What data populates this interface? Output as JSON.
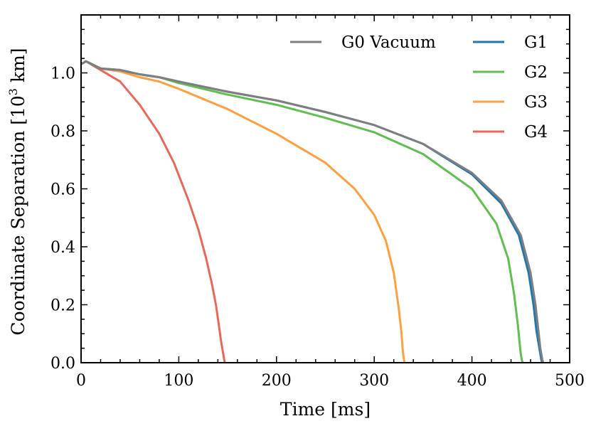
{
  "chart_data": {
    "type": "line",
    "title": "",
    "xlabel": "Time [ms]",
    "ylabel": {
      "prefix": "Coordinate Separation [10",
      "exponent": "3",
      "suffix": " km]"
    },
    "xlim": [
      0,
      500
    ],
    "ylim": [
      0,
      1.2
    ],
    "xticks": [
      0,
      100,
      200,
      300,
      400,
      500
    ],
    "xtick_labels": [
      "0",
      "100",
      "200",
      "300",
      "400",
      "500"
    ],
    "yticks": [
      0.0,
      0.2,
      0.4,
      0.6,
      0.8,
      1.0
    ],
    "ytick_labels": [
      "0.0",
      "0.2",
      "0.4",
      "0.6",
      "0.8",
      "1.0"
    ],
    "x_minor_step": 20,
    "y_minor_step": 0.05,
    "grid": false,
    "legend": "top-right, two columns",
    "series": [
      {
        "name": "G0 Vacuum",
        "color": "#7f7f7f",
        "x": [
          0,
          5,
          20,
          40,
          60,
          80,
          100,
          150,
          200,
          250,
          300,
          350,
          400,
          430,
          450,
          460,
          465,
          468,
          470,
          472,
          473
        ],
        "y": [
          1.03,
          1.04,
          1.015,
          1.01,
          0.995,
          0.985,
          0.97,
          0.935,
          0.905,
          0.865,
          0.82,
          0.755,
          0.655,
          0.56,
          0.44,
          0.31,
          0.2,
          0.11,
          0.05,
          0.01,
          0.0
        ]
      },
      {
        "name": "G1",
        "color": "#1f77b4",
        "x": [
          0,
          5,
          20,
          40,
          60,
          80,
          100,
          150,
          200,
          250,
          300,
          350,
          400,
          430,
          448,
          458,
          463,
          466,
          469,
          471,
          472
        ],
        "y": [
          1.03,
          1.04,
          1.015,
          1.01,
          0.995,
          0.985,
          0.97,
          0.935,
          0.905,
          0.865,
          0.82,
          0.755,
          0.65,
          0.55,
          0.44,
          0.31,
          0.2,
          0.11,
          0.05,
          0.01,
          0.0
        ]
      },
      {
        "name": "G2",
        "color": "#5fbf4f",
        "x": [
          0,
          5,
          20,
          40,
          60,
          80,
          100,
          150,
          200,
          250,
          300,
          350,
          400,
          425,
          437,
          443,
          447,
          449,
          450,
          451,
          452
        ],
        "y": [
          1.03,
          1.04,
          1.015,
          1.01,
          0.995,
          0.985,
          0.965,
          0.925,
          0.89,
          0.845,
          0.795,
          0.72,
          0.6,
          0.48,
          0.36,
          0.24,
          0.13,
          0.06,
          0.03,
          0.01,
          0.0
        ]
      },
      {
        "name": "G3",
        "color": "#ff9f3f",
        "x": [
          0,
          5,
          20,
          40,
          60,
          80,
          100,
          150,
          200,
          250,
          280,
          300,
          312,
          320,
          325,
          328,
          329,
          330,
          331
        ],
        "y": [
          1.03,
          1.04,
          1.015,
          1.005,
          0.985,
          0.97,
          0.945,
          0.875,
          0.79,
          0.69,
          0.6,
          0.51,
          0.42,
          0.31,
          0.19,
          0.1,
          0.05,
          0.02,
          0.0
        ]
      },
      {
        "name": "G4",
        "color": "#e8685a",
        "x": [
          0,
          5,
          20,
          40,
          60,
          80,
          95,
          110,
          120,
          128,
          134,
          138,
          141,
          143,
          144.5,
          145.5,
          146.5,
          147
        ],
        "y": [
          1.03,
          1.04,
          1.01,
          0.97,
          0.89,
          0.79,
          0.69,
          0.56,
          0.46,
          0.36,
          0.27,
          0.2,
          0.13,
          0.08,
          0.05,
          0.03,
          0.01,
          0.0
        ]
      }
    ]
  }
}
